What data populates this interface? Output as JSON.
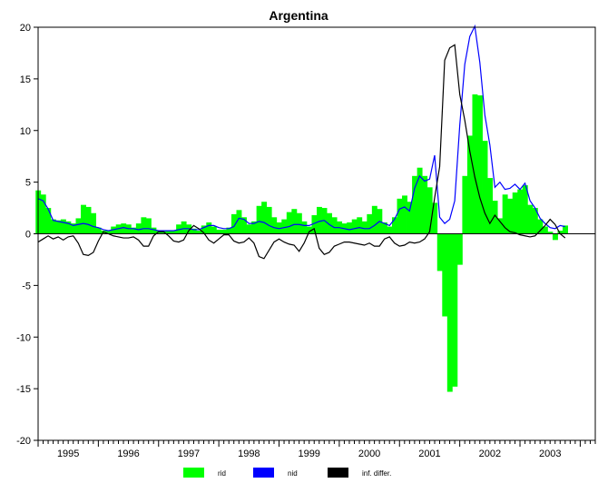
{
  "chart_data": {
    "type": "area",
    "title": "Argentina",
    "xlabel": "",
    "ylabel": "",
    "ylim": [
      -20,
      20
    ],
    "yticks": [
      20,
      15,
      10,
      5,
      0,
      -5,
      -10,
      -15,
      -20
    ],
    "xlim": [
      1995.0,
      2004.25
    ],
    "xtick_labels": [
      "1995",
      "1996",
      "1997",
      "1998",
      "1999",
      "2000",
      "2001",
      "2002",
      "2003"
    ],
    "grid": false,
    "legend_position": "bottom-center",
    "x": [
      1995.0,
      1995.0833,
      1995.1667,
      1995.25,
      1995.3333,
      1995.4167,
      1995.5,
      1995.5833,
      1995.6667,
      1995.75,
      1995.8333,
      1995.9167,
      1996.0,
      1996.0833,
      1996.1667,
      1996.25,
      1996.3333,
      1996.4167,
      1996.5,
      1996.5833,
      1996.6667,
      1996.75,
      1996.8333,
      1996.9167,
      1997.0,
      1997.0833,
      1997.1667,
      1997.25,
      1997.3333,
      1997.4167,
      1997.5,
      1997.5833,
      1997.6667,
      1997.75,
      1997.8333,
      1997.9167,
      1998.0,
      1998.0833,
      1998.1667,
      1998.25,
      1998.3333,
      1998.4167,
      1998.5,
      1998.5833,
      1998.6667,
      1998.75,
      1998.8333,
      1998.9167,
      1999.0,
      1999.0833,
      1999.1667,
      1999.25,
      1999.3333,
      1999.4167,
      1999.5,
      1999.5833,
      1999.6667,
      1999.75,
      1999.8333,
      1999.9167,
      2000.0,
      2000.0833,
      2000.1667,
      2000.25,
      2000.3333,
      2000.4167,
      2000.5,
      2000.5833,
      2000.6667,
      2000.75,
      2000.8333,
      2000.9167,
      2001.0,
      2001.0833,
      2001.1667,
      2001.25,
      2001.3333,
      2001.4167,
      2001.5,
      2001.5833,
      2001.6667,
      2001.75,
      2001.8333,
      2001.9167,
      2002.0,
      2002.0833,
      2002.1667,
      2002.25,
      2002.3333,
      2002.4167,
      2002.5,
      2002.5833,
      2002.6667,
      2002.75,
      2002.8333,
      2002.9167,
      2003.0,
      2003.0833,
      2003.1667,
      2003.25,
      2003.3333,
      2003.4167,
      2003.5,
      2003.5833,
      2003.6667,
      2003.75
    ],
    "series": [
      {
        "name": "rid",
        "style": "area",
        "color": "#00ff00",
        "values": [
          4.2,
          3.8,
          2.5,
          1.4,
          1.3,
          1.4,
          1.2,
          1.0,
          1.5,
          2.8,
          2.6,
          2.0,
          0.6,
          0.3,
          0.3,
          0.7,
          0.9,
          1.0,
          0.9,
          0.6,
          1.0,
          1.6,
          1.5,
          0.6,
          0.3,
          0.3,
          0.3,
          0.3,
          0.9,
          1.2,
          0.9,
          0.5,
          0.3,
          0.8,
          1.1,
          0.7,
          0.4,
          0.4,
          0.6,
          1.9,
          2.3,
          1.6,
          0.9,
          1.2,
          2.7,
          3.1,
          2.6,
          1.6,
          1.1,
          1.4,
          2.1,
          2.4,
          2.0,
          1.2,
          0.7,
          1.8,
          2.6,
          2.5,
          2.0,
          1.6,
          1.2,
          1.0,
          1.1,
          1.4,
          1.6,
          1.2,
          1.9,
          2.7,
          2.4,
          1.1,
          0.7,
          1.6,
          3.4,
          3.7,
          3.1,
          5.6,
          6.4,
          5.6,
          4.5,
          3.0,
          -3.6,
          -8.0,
          -15.3,
          -14.8,
          -3.0,
          5.6,
          9.5,
          13.5,
          13.4,
          9.0,
          5.4,
          3.2,
          1.5,
          3.8,
          3.4,
          4.0,
          4.3,
          4.7,
          2.8,
          2.5,
          1.4,
          0.7,
          0.2,
          -0.6,
          0.3,
          0.8
        ]
      },
      {
        "name": "nid",
        "style": "line",
        "color": "#0000ff",
        "values": [
          3.4,
          3.2,
          2.4,
          1.3,
          1.2,
          1.1,
          1.0,
          0.8,
          0.9,
          1.0,
          0.9,
          0.7,
          0.6,
          0.4,
          0.3,
          0.4,
          0.5,
          0.6,
          0.5,
          0.5,
          0.4,
          0.5,
          0.5,
          0.4,
          0.3,
          0.3,
          0.3,
          0.3,
          0.4,
          0.5,
          0.5,
          0.4,
          0.4,
          0.6,
          0.8,
          0.8,
          0.6,
          0.5,
          0.5,
          0.7,
          1.5,
          1.4,
          1.0,
          1.0,
          1.2,
          1.1,
          0.8,
          0.6,
          0.5,
          0.6,
          0.7,
          0.9,
          0.9,
          0.8,
          0.8,
          1.0,
          1.2,
          1.3,
          0.9,
          0.6,
          0.6,
          0.5,
          0.4,
          0.5,
          0.6,
          0.5,
          0.5,
          0.8,
          1.2,
          1.0,
          0.8,
          1.4,
          2.4,
          2.6,
          2.2,
          4.4,
          5.6,
          5.1,
          5.3,
          7.6,
          1.6,
          1.0,
          1.4,
          3.2,
          10.5,
          16.4,
          19.1,
          20.1,
          16.6,
          11.5,
          8.6,
          4.5,
          5.0,
          4.3,
          4.4,
          4.8,
          4.3,
          4.9,
          3.2,
          2.5,
          1.5,
          1.0,
          0.6,
          0.5,
          0.8,
          0.7
        ]
      },
      {
        "name": "inf. differ.",
        "style": "line",
        "color": "#000000",
        "values": [
          -0.8,
          -0.5,
          -0.2,
          -0.5,
          -0.3,
          -0.6,
          -0.3,
          -0.2,
          -0.9,
          -2.0,
          -2.1,
          -1.8,
          -0.7,
          0.2,
          0.0,
          -0.2,
          -0.3,
          -0.4,
          -0.4,
          -0.3,
          -0.6,
          -1.2,
          -1.2,
          -0.2,
          0.2,
          0.2,
          -0.2,
          -0.7,
          -0.8,
          -0.6,
          0.3,
          0.8,
          0.5,
          0.1,
          -0.6,
          -0.9,
          -0.5,
          -0.1,
          -0.1,
          -0.7,
          -0.9,
          -0.8,
          -0.4,
          -0.9,
          -2.2,
          -2.4,
          -1.6,
          -0.8,
          -0.5,
          -0.8,
          -1.0,
          -1.1,
          -1.7,
          -0.9,
          0.2,
          0.5,
          -1.4,
          -2.0,
          -1.8,
          -1.2,
          -1.0,
          -0.8,
          -0.8,
          -0.9,
          -1.0,
          -1.1,
          -0.9,
          -1.2,
          -1.2,
          -0.5,
          -0.3,
          -0.9,
          -1.2,
          -1.1,
          -0.8,
          -0.9,
          -0.8,
          -0.5,
          0.2,
          3.5,
          6.5,
          16.8,
          18.0,
          18.3,
          13.5,
          11.0,
          8.0,
          5.5,
          3.5,
          2.0,
          1.0,
          1.8,
          1.2,
          0.6,
          0.2,
          0.1,
          -0.1,
          -0.2,
          -0.3,
          -0.2,
          0.3,
          0.8,
          1.4,
          0.9,
          0.0,
          -0.4
        ]
      }
    ]
  }
}
